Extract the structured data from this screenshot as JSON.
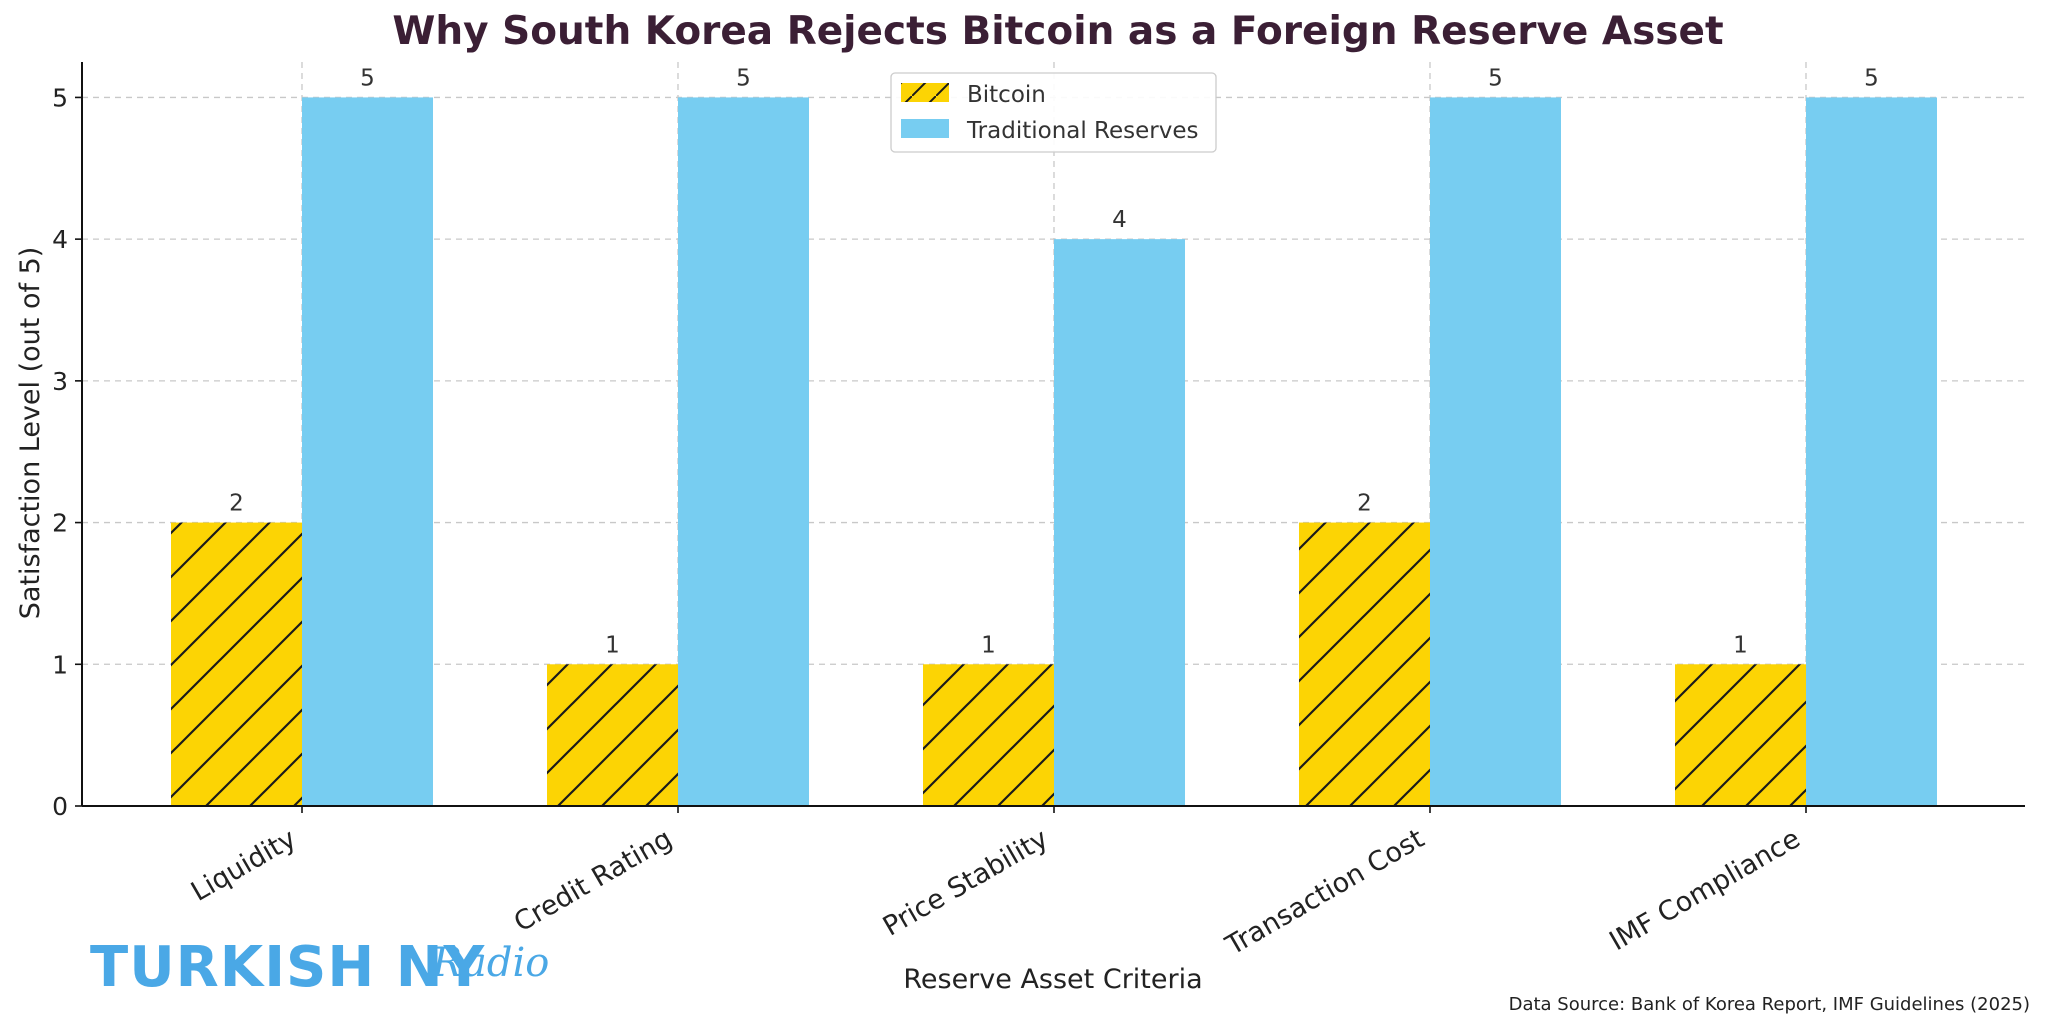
{
  "chart_data": {
    "type": "bar",
    "title": "Why South Korea Rejects Bitcoin as a Foreign Reserve Asset",
    "xlabel": "Reserve Asset Criteria",
    "ylabel": "Satisfaction Level (out of 5)",
    "categories": [
      "Liquidity",
      "Credit Rating",
      "Price Stability",
      "Transaction Cost",
      "IMF Compliance"
    ],
    "series": [
      {
        "name": "Bitcoin",
        "values": [
          2,
          1,
          1,
          2,
          1
        ],
        "color": "#fcd404",
        "hatch": true
      },
      {
        "name": "Traditional Reserves",
        "values": [
          5,
          5,
          4,
          5,
          5
        ],
        "color": "#77cdf1",
        "hatch": false
      }
    ],
    "ylim": [
      0,
      5.25
    ],
    "yticks": [
      "0",
      "1",
      "2",
      "3",
      "4",
      "5"
    ],
    "grid": true,
    "legend_position": "top-center"
  },
  "source_note": "Data Source: Bank of Korea Report, IMF Guidelines (2025)",
  "logo": {
    "main": "TURKISH NY",
    "script": "Radio"
  },
  "colors": {
    "bitcoin": "#fcd404",
    "traditional": "#77cdf1",
    "title": "#3b1f35",
    "logo": "#4aa8e6"
  }
}
